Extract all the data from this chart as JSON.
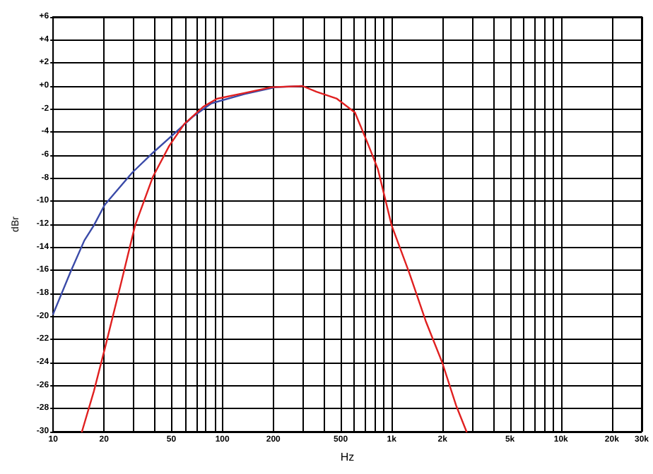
{
  "chart_data": {
    "type": "line",
    "xlabel": "Hz",
    "ylabel": "dBr",
    "log": "x",
    "grid": true,
    "marker": "none",
    "line_style": "solid",
    "xlim": [
      10,
      30000
    ],
    "xticks": [
      10,
      {
        "value": 20,
        "label": "20"
      },
      {
        "value": 30,
        "label": null
      },
      {
        "value": 40,
        "label": null
      },
      {
        "value": 50,
        "label": "50"
      },
      {
        "value": 60,
        "label": null
      },
      {
        "value": 70,
        "label": null
      },
      {
        "value": 80,
        "label": null
      },
      {
        "value": 90,
        "label": null
      },
      100,
      200,
      {
        "value": 300,
        "label": null
      },
      {
        "value": 400,
        "label": null
      },
      500,
      {
        "value": 600,
        "label": null
      },
      {
        "value": 700,
        "label": null
      },
      {
        "value": 800,
        "label": null
      },
      {
        "value": 900,
        "label": null
      },
      {
        "value": 1000,
        "label": "1k"
      },
      {
        "value": 2000,
        "label": "2k"
      },
      {
        "value": 3000,
        "label": null
      },
      {
        "value": 4000,
        "label": null
      },
      {
        "value": 5000,
        "label": "5k"
      },
      {
        "value": 6000,
        "label": null
      },
      {
        "value": 7000,
        "label": null
      },
      {
        "value": 8000,
        "label": null
      },
      {
        "value": 9000,
        "label": null
      },
      {
        "value": 10000,
        "label": "10k"
      },
      {
        "value": 20000,
        "label": "20k"
      },
      {
        "value": 30000,
        "label": "30k"
      }
    ],
    "ylim": [
      -30,
      6
    ],
    "yticks": [
      {
        "value": 6,
        "label": "+6"
      },
      {
        "value": 4,
        "label": "+4"
      },
      {
        "value": 2,
        "label": "+2"
      },
      {
        "value": 0,
        "label": "+0"
      },
      -2,
      -4,
      -6,
      -8,
      -10,
      -12,
      -14,
      -16,
      -18,
      -20,
      -22,
      -24,
      -26,
      -28,
      -30
    ],
    "series": [
      {
        "color": "#3a4aa8",
        "x": [
          10,
          12.7,
          15.3,
          17.4,
          20.2,
          29.4,
          38.8,
          51.3,
          67.7,
          86.1,
          135,
          206,
          298
        ],
        "values": [
          -19.8,
          -16.1,
          -13.4,
          -12.1,
          -10.3,
          -7.5,
          -5.8,
          -4.2,
          -2.6,
          -1.5,
          -0.7,
          -0.1,
          0
        ]
      },
      {
        "color": "#e02020",
        "x": [
          14.8,
          17.4,
          20.2,
          25.3,
          30.5,
          38.8,
          48.5,
          59.5,
          77.1,
          92.8,
          135,
          195,
          298,
          360,
          475,
          607,
          714,
          829,
          1000,
          1270,
          1590,
          1990,
          2400,
          2770
        ],
        "values": [
          -30,
          -26.5,
          -22.8,
          -17,
          -12.1,
          -7.9,
          -5.2,
          -3.3,
          -1.8,
          -1.1,
          -0.6,
          -0.1,
          0,
          -0.5,
          -1.1,
          -2.3,
          -4.8,
          -7.2,
          -12.1,
          -16.2,
          -20.4,
          -24,
          -27.7,
          -30
        ]
      }
    ]
  }
}
